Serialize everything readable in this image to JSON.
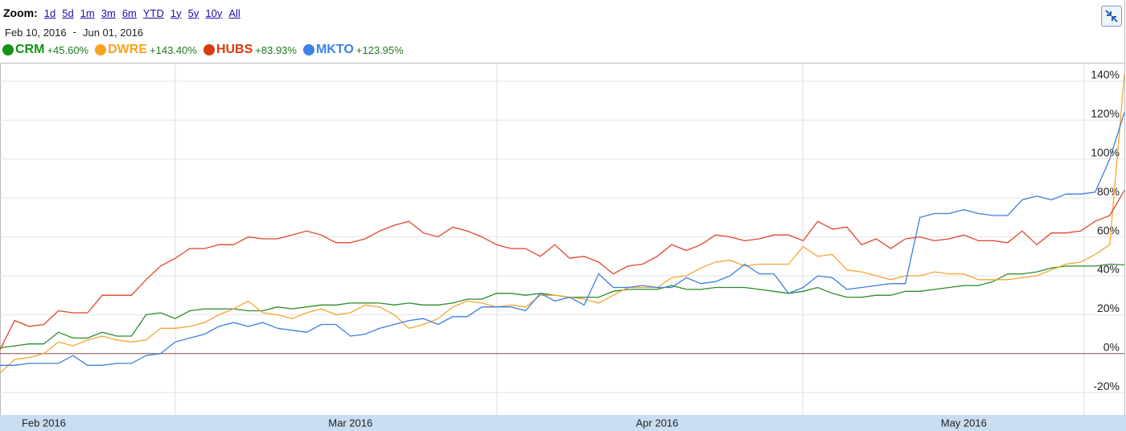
{
  "toolbar": {
    "zoom_label": "Zoom:",
    "zoom_options": [
      "1d",
      "5d",
      "1m",
      "3m",
      "6m",
      "YTD",
      "1y",
      "5y",
      "10y",
      "All"
    ],
    "start_date": "Feb 10, 2016",
    "separator": "-",
    "end_date": "Jun 01, 2016"
  },
  "chart_data": {
    "type": "line",
    "categories": [
      null,
      null,
      null,
      "Feb 2016",
      null,
      null,
      null,
      null,
      null,
      null,
      null,
      null,
      null,
      null,
      null,
      null,
      null,
      null,
      null,
      null,
      null,
      null,
      null,
      null,
      "Mar 2016",
      null,
      null,
      null,
      null,
      null,
      null,
      null,
      null,
      null,
      null,
      null,
      null,
      null,
      null,
      null,
      null,
      null,
      null,
      null,
      null,
      "Apr 2016",
      null,
      null,
      null,
      null,
      null,
      null,
      null,
      null,
      null,
      null,
      null,
      null,
      null,
      null,
      null,
      null,
      null,
      null,
      null,
      null,
      "May 2016",
      null,
      null,
      null,
      null,
      null,
      null,
      null,
      null,
      null,
      null,
      null
    ],
    "series": [
      {
        "name": "CRM",
        "change": "+45.60%",
        "color": "#2a8c2a",
        "dot": "#129412",
        "values": [
          3,
          4,
          5,
          5,
          11,
          8,
          8,
          11,
          9,
          9,
          20,
          21,
          18,
          22,
          23,
          23,
          23,
          22,
          22,
          24,
          23,
          24,
          25,
          25,
          26,
          26,
          26,
          25,
          26,
          25,
          25,
          26,
          28,
          28,
          31,
          31,
          30,
          31,
          30,
          29,
          29,
          29,
          32,
          33,
          33,
          33,
          35,
          33,
          33,
          34,
          34,
          34,
          33,
          32,
          31,
          32,
          34,
          31,
          29,
          29,
          30,
          30,
          32,
          32,
          33,
          34,
          35,
          35,
          37,
          41,
          41,
          42,
          44,
          45,
          45,
          45,
          46,
          45.6
        ]
      },
      {
        "name": "DWRE",
        "change": "+143.40%",
        "color": "#f5a530",
        "dot": "#f9a31c",
        "values": [
          -10,
          -3,
          -2,
          0,
          6,
          4,
          7,
          9,
          7,
          6,
          7,
          13,
          13,
          14,
          16,
          20,
          23,
          27,
          21,
          20,
          18,
          21,
          23,
          20,
          21,
          25,
          24,
          20,
          13,
          15,
          18,
          24,
          27,
          26,
          24,
          25,
          24,
          30,
          30,
          29,
          28,
          26,
          30,
          34,
          34,
          34,
          39,
          40,
          44,
          47,
          48,
          45,
          46,
          46,
          46,
          55,
          50,
          51,
          43,
          42,
          40,
          38,
          40,
          40,
          42,
          41,
          41,
          38,
          38,
          38,
          39,
          40,
          43,
          46,
          47,
          51,
          56,
          143.4
        ]
      },
      {
        "name": "HUBS",
        "change": "+83.93%",
        "color": "#e0462a",
        "dot": "#dc3912",
        "values": [
          2,
          17,
          14,
          15,
          22,
          21,
          21,
          30,
          30,
          30,
          38,
          45,
          49,
          54,
          54,
          56,
          56,
          60,
          59,
          59,
          61,
          63,
          61,
          57,
          57,
          59,
          63,
          66,
          68,
          62,
          60,
          65,
          63,
          60,
          56,
          54,
          54,
          50,
          56,
          49,
          50,
          47,
          41,
          45,
          46,
          50,
          56,
          53,
          56,
          61,
          60,
          58,
          59,
          61,
          61,
          58,
          68,
          64,
          65,
          56,
          59,
          54,
          59,
          60,
          58,
          59,
          61,
          58,
          58,
          57,
          63,
          56,
          62,
          62,
          63,
          68,
          71,
          83.93
        ]
      },
      {
        "name": "MKTO",
        "change": "+123.95%",
        "color": "#3c7fe0",
        "dot": "#3b82e6",
        "values": [
          -6,
          -6,
          -5,
          -5,
          -5,
          -1,
          -6,
          -6,
          -5,
          -5,
          -1,
          0,
          6,
          8,
          10,
          14,
          16,
          14,
          16,
          13,
          12,
          11,
          15,
          15,
          9,
          10,
          13,
          15,
          17,
          18,
          15,
          19,
          19,
          24,
          24,
          24,
          22,
          31,
          27,
          29,
          25,
          41,
          34,
          34,
          35,
          34,
          34,
          39,
          36,
          37,
          40,
          46,
          41,
          41,
          31,
          34,
          40,
          39,
          33,
          34,
          35,
          36,
          36,
          70,
          72,
          72,
          74,
          72,
          71,
          71,
          79,
          81,
          79,
          82,
          82,
          83,
          100,
          123.95
        ]
      }
    ],
    "ylim": [
      -31.5,
      149.5
    ],
    "yticks": [
      {
        "value": -20,
        "label": "-20%"
      },
      {
        "value": 0,
        "label": "0%"
      },
      {
        "value": 20,
        "label": "20%"
      },
      {
        "value": 40,
        "label": "40%"
      },
      {
        "value": 60,
        "label": "60%"
      },
      {
        "value": 80,
        "label": "80%"
      },
      {
        "value": 100,
        "label": "100%"
      },
      {
        "value": 120,
        "label": "120%"
      },
      {
        "value": 140,
        "label": "140%"
      }
    ],
    "grid": true
  }
}
